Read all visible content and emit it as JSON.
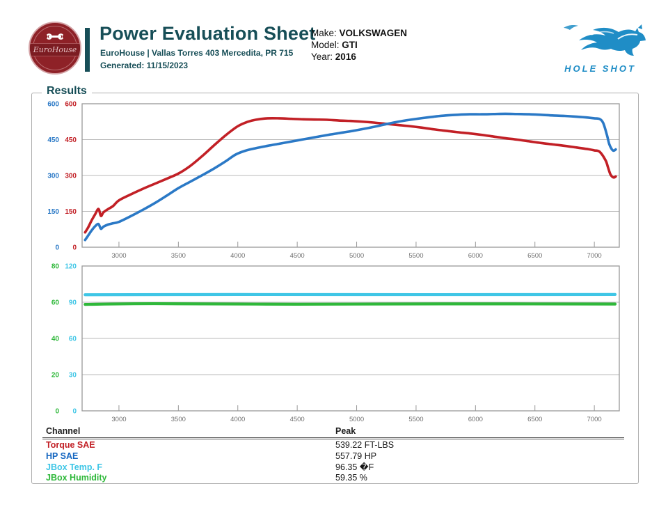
{
  "header": {
    "logo": {
      "text": "EuroHouse",
      "bg_color": "#8E2127"
    },
    "title": "Power Evaluation Sheet",
    "subtitle": "EuroHouse | Vallas Torres 403 Mercedita, PR 715",
    "generated": "Generated: 11/15/2023",
    "vehicle": {
      "make_label": "Make:",
      "make": "VOLKSWAGEN",
      "model_label": "Model:",
      "model": "GTI",
      "year_label": "Year:",
      "year": "2016"
    },
    "brand": {
      "name": "HOLE SHOT",
      "color": "#1F8DC6"
    }
  },
  "results": {
    "legend": "Results"
  },
  "chart_data": [
    {
      "type": "line",
      "title": "Torque and HP vs RPM",
      "x": {
        "min": 2690,
        "max": 7210,
        "ticks": [
          3000,
          3500,
          4000,
          4500,
          5000,
          5500,
          6000,
          6500,
          7000
        ]
      },
      "axes": [
        {
          "name": "HP axis",
          "color": "#2B79C6",
          "min": 0,
          "max": 600,
          "ticks": [
            600,
            450,
            300,
            150,
            0
          ]
        },
        {
          "name": "Torque axis",
          "color": "#C22026",
          "min": 0,
          "max": 600,
          "ticks": [
            600,
            450,
            300,
            150,
            0
          ]
        }
      ],
      "grid": "horizontal",
      "series": [
        {
          "name": "Torque SAE",
          "color": "#C22026",
          "axis": 1,
          "width": 3.6,
          "points": [
            [
              2715,
              62
            ],
            [
              2740,
              82
            ],
            [
              2770,
              112
            ],
            [
              2800,
              138
            ],
            [
              2828,
              160
            ],
            [
              2848,
              131
            ],
            [
              2870,
              146
            ],
            [
              2910,
              160
            ],
            [
              2950,
              172
            ],
            [
              3000,
              196
            ],
            [
              3100,
              221
            ],
            [
              3200,
              244
            ],
            [
              3300,
              265
            ],
            [
              3400,
              286
            ],
            [
              3500,
              308
            ],
            [
              3600,
              340
            ],
            [
              3700,
              381
            ],
            [
              3800,
              426
            ],
            [
              3900,
              469
            ],
            [
              4000,
              506
            ],
            [
              4080,
              524
            ],
            [
              4150,
              533
            ],
            [
              4250,
              539
            ],
            [
              4350,
              539
            ],
            [
              4450,
              537
            ],
            [
              4550,
              535
            ],
            [
              4650,
              534
            ],
            [
              4750,
              533
            ],
            [
              4850,
              530
            ],
            [
              4950,
              528
            ],
            [
              5050,
              525
            ],
            [
              5150,
              521
            ],
            [
              5250,
              516
            ],
            [
              5350,
              511
            ],
            [
              5450,
              506
            ],
            [
              5550,
              500
            ],
            [
              5650,
              493
            ],
            [
              5750,
              487
            ],
            [
              5850,
              481
            ],
            [
              5950,
              476
            ],
            [
              6050,
              470
            ],
            [
              6150,
              463
            ],
            [
              6250,
              456
            ],
            [
              6350,
              450
            ],
            [
              6450,
              443
            ],
            [
              6550,
              436
            ],
            [
              6650,
              430
            ],
            [
              6750,
              424
            ],
            [
              6850,
              417
            ],
            [
              6950,
              410
            ],
            [
              7000,
              405
            ],
            [
              7045,
              399
            ],
            [
              7095,
              363
            ],
            [
              7115,
              334
            ],
            [
              7135,
              305
            ],
            [
              7155,
              293
            ],
            [
              7168,
              292
            ],
            [
              7180,
              296
            ]
          ]
        },
        {
          "name": "HP SAE",
          "color": "#2B79C6",
          "axis": 0,
          "width": 3.6,
          "points": [
            [
              2715,
              30
            ],
            [
              2740,
              48
            ],
            [
              2770,
              70
            ],
            [
              2800,
              88
            ],
            [
              2828,
              97
            ],
            [
              2848,
              77
            ],
            [
              2870,
              86
            ],
            [
              2910,
              95
            ],
            [
              2950,
              100
            ],
            [
              3000,
              106
            ],
            [
              3100,
              130
            ],
            [
              3200,
              156
            ],
            [
              3300,
              184
            ],
            [
              3400,
              215
            ],
            [
              3500,
              247
            ],
            [
              3600,
              274
            ],
            [
              3700,
              301
            ],
            [
              3800,
              329
            ],
            [
              3900,
              360
            ],
            [
              3980,
              387
            ],
            [
              4060,
              403
            ],
            [
              4150,
              414
            ],
            [
              4250,
              424
            ],
            [
              4350,
              433
            ],
            [
              4450,
              442
            ],
            [
              4550,
              451
            ],
            [
              4650,
              460
            ],
            [
              4750,
              469
            ],
            [
              4850,
              477
            ],
            [
              4950,
              485
            ],
            [
              5050,
              494
            ],
            [
              5150,
              504
            ],
            [
              5250,
              515
            ],
            [
              5350,
              525
            ],
            [
              5450,
              533
            ],
            [
              5550,
              540
            ],
            [
              5650,
              546
            ],
            [
              5750,
              551
            ],
            [
              5850,
              554
            ],
            [
              5950,
              556
            ],
            [
              6050,
              556
            ],
            [
              6150,
              557
            ],
            [
              6250,
              558
            ],
            [
              6350,
              557
            ],
            [
              6450,
              556
            ],
            [
              6550,
              554
            ],
            [
              6650,
              551
            ],
            [
              6750,
              549
            ],
            [
              6850,
              546
            ],
            [
              6950,
              542
            ],
            [
              7000,
              539
            ],
            [
              7045,
              536
            ],
            [
              7075,
              519
            ],
            [
              7105,
              471
            ],
            [
              7125,
              432
            ],
            [
              7145,
              411
            ],
            [
              7158,
              404
            ],
            [
              7170,
              405
            ],
            [
              7180,
              409
            ]
          ]
        }
      ]
    },
    {
      "type": "line",
      "title": "JBox Temp and Humidity vs RPM",
      "x": {
        "min": 2690,
        "max": 7210,
        "ticks": [
          3000,
          3500,
          4000,
          4500,
          5000,
          5500,
          6000,
          6500,
          7000
        ]
      },
      "axes": [
        {
          "name": "Humidity axis",
          "color": "#2FB83A",
          "min": 0,
          "max": 80,
          "ticks": [
            80,
            60,
            40,
            20,
            0
          ]
        },
        {
          "name": "Temp axis",
          "color": "#3FC6E6",
          "min": 0,
          "max": 120,
          "ticks": [
            120,
            90,
            60,
            30,
            0
          ]
        }
      ],
      "grid": "horizontal",
      "series": [
        {
          "name": "JBox Temp. F",
          "color": "#3FC6E6",
          "axis": 1,
          "width": 4.2,
          "points": [
            [
              2715,
              96.2
            ],
            [
              4000,
              96.4
            ],
            [
              5500,
              96.3
            ],
            [
              7175,
              96.4
            ]
          ]
        },
        {
          "name": "JBox Humidity",
          "color": "#2FB83A",
          "axis": 0,
          "width": 4.2,
          "points": [
            [
              2715,
              58.8
            ],
            [
              3300,
              59.2
            ],
            [
              4500,
              58.9
            ],
            [
              5800,
              59.1
            ],
            [
              7175,
              59.0
            ]
          ]
        }
      ]
    }
  ],
  "table": {
    "channel_header": "Channel",
    "peak_header": "Peak",
    "rows": [
      {
        "channel": "Torque SAE",
        "peak": "539.22 FT-LBS",
        "color": "#C22026"
      },
      {
        "channel": "HP SAE",
        "peak": "557.79 HP",
        "color": "#1566C0"
      },
      {
        "channel": "JBox Temp. F",
        "peak": "96.35 �F",
        "color": "#3FC6E6"
      },
      {
        "channel": "JBox Humidity",
        "peak": "59.35 %",
        "color": "#2FB83A"
      }
    ]
  }
}
